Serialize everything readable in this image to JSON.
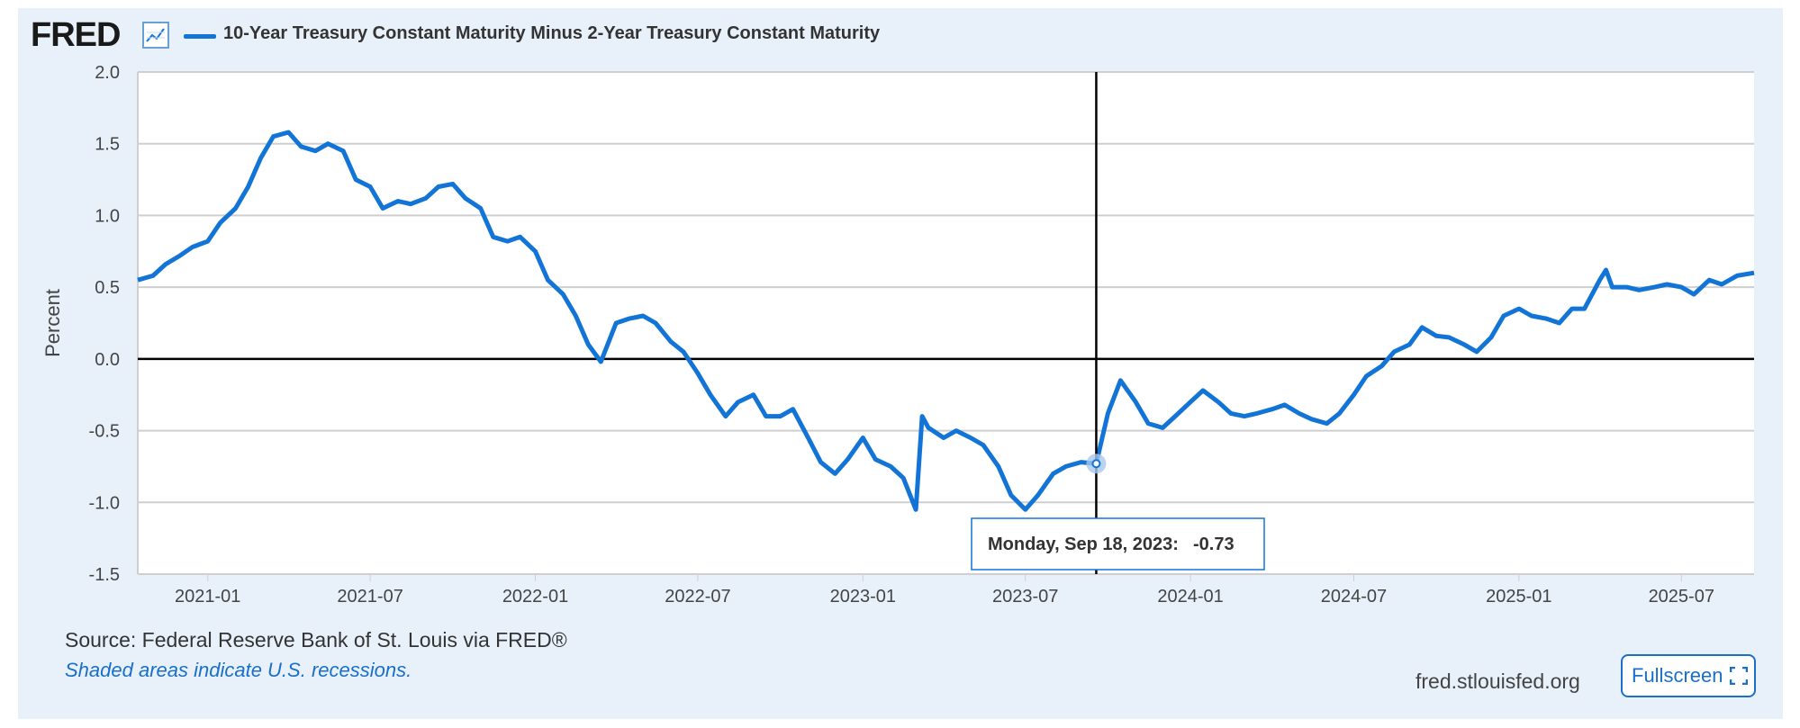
{
  "header": {
    "logo_text": "FRED",
    "logo_icon": "line-chart-icon",
    "series_title": "10-Year Treasury Constant Maturity Minus 2-Year Treasury Constant Maturity"
  },
  "footer": {
    "source": "Source: Federal Reserve Bank of St. Louis via FRED®",
    "recession_note": "Shaded areas indicate U.S. recessions.",
    "site": "fred.stlouisfed.org",
    "fullscreen_label": "Fullscreen",
    "fullscreen_icon": "expand-icon"
  },
  "tooltip": {
    "date": "Monday, Sep 18, 2023:",
    "value": "-0.73"
  },
  "colors": {
    "series": "#1274d6",
    "background": "#e8f1fa",
    "accent": "#1a6fc9"
  },
  "chart_data": {
    "type": "line",
    "title": "10-Year Treasury Constant Maturity Minus 2-Year Treasury Constant Maturity",
    "ylabel": "Percent",
    "xlabel": "",
    "ylim": [
      -1.5,
      2.0
    ],
    "xlim": [
      "2020-10-15",
      "2025-09-20"
    ],
    "yticks": [
      "2.0",
      "1.5",
      "1.0",
      "0.5",
      "0.0",
      "-0.5",
      "-1.0",
      "-1.5"
    ],
    "xticks": [
      "2021-01",
      "2021-07",
      "2022-01",
      "2022-07",
      "2023-01",
      "2023-07",
      "2024-01",
      "2024-07",
      "2025-01",
      "2025-07"
    ],
    "grid": true,
    "legend": "top-left",
    "highlight": {
      "date": "2023-09-18",
      "value": -0.73
    },
    "series": [
      {
        "name": "10-Year Treasury Constant Maturity Minus 2-Year Treasury Constant Maturity",
        "x": [
          "2020-10-15",
          "2020-11-01",
          "2020-11-15",
          "2020-12-01",
          "2020-12-15",
          "2021-01-01",
          "2021-01-15",
          "2021-02-01",
          "2021-02-15",
          "2021-03-01",
          "2021-03-15",
          "2021-04-01",
          "2021-04-15",
          "2021-05-01",
          "2021-05-15",
          "2021-06-01",
          "2021-06-15",
          "2021-07-01",
          "2021-07-15",
          "2021-08-01",
          "2021-08-15",
          "2021-09-01",
          "2021-09-15",
          "2021-10-01",
          "2021-10-15",
          "2021-11-01",
          "2021-11-15",
          "2021-12-01",
          "2021-12-15",
          "2022-01-01",
          "2022-01-15",
          "2022-02-01",
          "2022-02-15",
          "2022-03-01",
          "2022-03-15",
          "2022-04-01",
          "2022-04-15",
          "2022-05-01",
          "2022-05-15",
          "2022-06-01",
          "2022-06-15",
          "2022-07-01",
          "2022-07-15",
          "2022-08-01",
          "2022-08-15",
          "2022-09-01",
          "2022-09-15",
          "2022-10-01",
          "2022-10-15",
          "2022-11-01",
          "2022-11-15",
          "2022-12-01",
          "2022-12-15",
          "2023-01-01",
          "2023-01-15",
          "2023-02-01",
          "2023-02-15",
          "2023-03-01",
          "2023-03-08",
          "2023-03-15",
          "2023-04-01",
          "2023-04-15",
          "2023-05-01",
          "2023-05-15",
          "2023-06-01",
          "2023-06-15",
          "2023-07-01",
          "2023-07-15",
          "2023-08-01",
          "2023-08-15",
          "2023-09-01",
          "2023-09-18",
          "2023-10-01",
          "2023-10-15",
          "2023-11-01",
          "2023-11-15",
          "2023-12-01",
          "2023-12-15",
          "2024-01-01",
          "2024-01-15",
          "2024-02-01",
          "2024-02-15",
          "2024-03-01",
          "2024-03-15",
          "2024-04-01",
          "2024-04-15",
          "2024-05-01",
          "2024-05-15",
          "2024-06-01",
          "2024-06-15",
          "2024-07-01",
          "2024-07-15",
          "2024-08-01",
          "2024-08-15",
          "2024-09-01",
          "2024-09-15",
          "2024-10-01",
          "2024-10-15",
          "2024-11-01",
          "2024-11-15",
          "2024-12-01",
          "2024-12-15",
          "2025-01-01",
          "2025-01-15",
          "2025-02-01",
          "2025-02-15",
          "2025-03-01",
          "2025-03-15",
          "2025-04-01",
          "2025-04-08",
          "2025-04-15",
          "2025-05-01",
          "2025-05-15",
          "2025-06-01",
          "2025-06-15",
          "2025-07-01",
          "2025-07-15",
          "2025-08-01",
          "2025-08-15",
          "2025-09-01",
          "2025-09-20"
        ],
        "values": [
          0.55,
          0.58,
          0.66,
          0.72,
          0.78,
          0.82,
          0.95,
          1.05,
          1.2,
          1.4,
          1.55,
          1.58,
          1.48,
          1.45,
          1.5,
          1.45,
          1.25,
          1.2,
          1.05,
          1.1,
          1.08,
          1.12,
          1.2,
          1.22,
          1.12,
          1.05,
          0.85,
          0.82,
          0.85,
          0.75,
          0.55,
          0.45,
          0.3,
          0.1,
          -0.02,
          0.25,
          0.28,
          0.3,
          0.25,
          0.12,
          0.05,
          -0.1,
          -0.25,
          -0.4,
          -0.3,
          -0.25,
          -0.4,
          -0.4,
          -0.35,
          -0.55,
          -0.72,
          -0.8,
          -0.7,
          -0.55,
          -0.7,
          -0.75,
          -0.83,
          -1.05,
          -0.4,
          -0.48,
          -0.55,
          -0.5,
          -0.55,
          -0.6,
          -0.75,
          -0.95,
          -1.05,
          -0.95,
          -0.8,
          -0.75,
          -0.72,
          -0.73,
          -0.38,
          -0.15,
          -0.3,
          -0.45,
          -0.48,
          -0.4,
          -0.3,
          -0.22,
          -0.3,
          -0.38,
          -0.4,
          -0.38,
          -0.35,
          -0.32,
          -0.38,
          -0.42,
          -0.45,
          -0.38,
          -0.25,
          -0.12,
          -0.05,
          0.05,
          0.1,
          0.22,
          0.16,
          0.15,
          0.1,
          0.05,
          0.15,
          0.3,
          0.35,
          0.3,
          0.28,
          0.25,
          0.35,
          0.35,
          0.55,
          0.62,
          0.5,
          0.5,
          0.48,
          0.5,
          0.52,
          0.5,
          0.45,
          0.55,
          0.52,
          0.58,
          0.6
        ]
      }
    ]
  }
}
